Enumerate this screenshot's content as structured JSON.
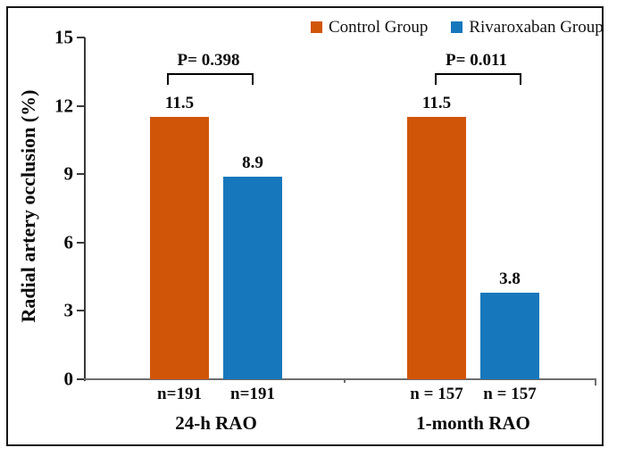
{
  "figure": {
    "background": "#ffffff",
    "frame_color": "#161616"
  },
  "colors": {
    "control": "#d15509",
    "rivaroxaban": "#1777bc",
    "y_axis": "#3a3a3a",
    "x_axis": "#6e6e6e",
    "text": "#0a0a0a"
  },
  "legend": {
    "position": "top-right",
    "items": [
      {
        "label": "Control Group",
        "color": "#d15509"
      },
      {
        "label": "Rivaroxaban Group",
        "color": "#1777bc"
      }
    ]
  },
  "chart_data": {
    "type": "bar",
    "title": "",
    "xlabel": "",
    "ylabel": "Radial artery occlusion (%)",
    "ylim": [
      0,
      15
    ],
    "yticks": [
      0,
      3,
      6,
      9,
      12,
      15
    ],
    "grid": false,
    "legend_position": "top-right",
    "categories": [
      "24-h RAO",
      "1-month RAO"
    ],
    "series": [
      {
        "name": "Control Group",
        "color": "#d15509",
        "values": [
          11.5,
          11.5
        ],
        "value_labels": [
          "11.5",
          "11.5"
        ],
        "n_labels": [
          "n=191",
          "n = 157"
        ]
      },
      {
        "name": "Rivaroxaban Group",
        "color": "#1777bc",
        "values": [
          8.9,
          3.8
        ],
        "value_labels": [
          "8.9",
          "3.8"
        ],
        "n_labels": [
          "n=191",
          "n = 157"
        ]
      }
    ],
    "annotations": [
      {
        "category": "24-h RAO",
        "text": "P= 0.398",
        "type": "significance-bracket"
      },
      {
        "category": "1-month RAO",
        "text": "P= 0.011",
        "type": "significance-bracket"
      }
    ]
  }
}
